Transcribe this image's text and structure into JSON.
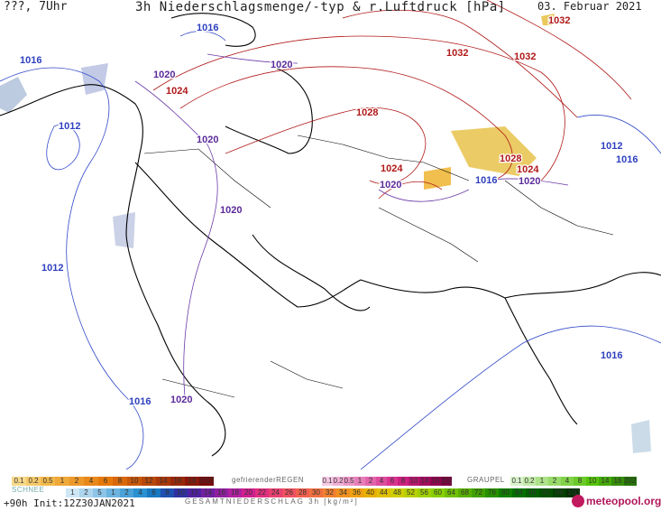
{
  "header": {
    "left": "???, 7Uhr",
    "title": "3h Niederschlagsmenge/-typ & r.Luftdruck [hPa]",
    "date": "03. Februar 2021"
  },
  "isobar_labels": [
    {
      "text": "1016",
      "color": "blue"
    },
    {
      "text": "1016",
      "color": "blue"
    },
    {
      "text": "1012",
      "color": "blue"
    },
    {
      "text": "1020",
      "color": "purple"
    },
    {
      "text": "1024",
      "color": "red"
    },
    {
      "text": "1020",
      "color": "purple"
    },
    {
      "text": "1020",
      "color": "purple"
    },
    {
      "text": "1020",
      "color": "purple"
    },
    {
      "text": "1012",
      "color": "blue"
    },
    {
      "text": "1028",
      "color": "red"
    },
    {
      "text": "1032",
      "color": "red"
    },
    {
      "text": "1032",
      "color": "red"
    },
    {
      "text": "1032",
      "color": "red"
    },
    {
      "text": "1024",
      "color": "red"
    },
    {
      "text": "1020",
      "color": "purple"
    },
    {
      "text": "1028",
      "color": "red"
    },
    {
      "text": "1024",
      "color": "red"
    },
    {
      "text": "1016",
      "color": "blue"
    },
    {
      "text": "1020",
      "color": "purple"
    },
    {
      "text": "1012",
      "color": "blue"
    },
    {
      "text": "1016",
      "color": "blue"
    },
    {
      "text": "1016",
      "color": "blue"
    },
    {
      "text": "1020",
      "color": "purple"
    },
    {
      "text": "1016",
      "color": "blue"
    }
  ],
  "colors": {
    "blue": "#2e3fbf",
    "purple": "#5b2a9a",
    "red": "#b01818"
  },
  "legend": {
    "rain_values": [
      "0.1",
      "0.2",
      "0.5",
      "1",
      "2",
      "4",
      "6",
      "8",
      "10",
      "12",
      "14",
      "16",
      "18",
      "2025+"
    ],
    "freezing_title": "gefrierenderREGEN",
    "freezing_values": [
      "0.1",
      "0.2",
      "0.5",
      "1",
      "2",
      "4",
      "6",
      "8",
      "10",
      "14",
      "16",
      "2025+"
    ],
    "graupel_title": "GRAUPEL",
    "graupel_values": [
      "0.1",
      "0.2",
      "1",
      "2",
      "4",
      "8",
      "10",
      "14",
      "16",
      "2025+"
    ],
    "snow_title": "SCHNEE",
    "total_values": [
      "1",
      "2",
      "5",
      "1",
      "2",
      "4",
      "6",
      "8",
      "10",
      "12",
      "14",
      "16",
      "18",
      "20",
      "22",
      "24",
      "26",
      "28",
      "30",
      "32",
      "34",
      "36",
      "40",
      "44",
      "48",
      "52",
      "56",
      "60",
      "64",
      "68",
      "72",
      "76",
      "80",
      "84",
      "88",
      "92",
      "96",
      "100"
    ],
    "total_title": "GESAMTNIEDERSCHLAG 3h [kg/m²]"
  },
  "footer": {
    "run": "+90h Init:12Z30JAN2021",
    "brand": "meteopool.org"
  }
}
